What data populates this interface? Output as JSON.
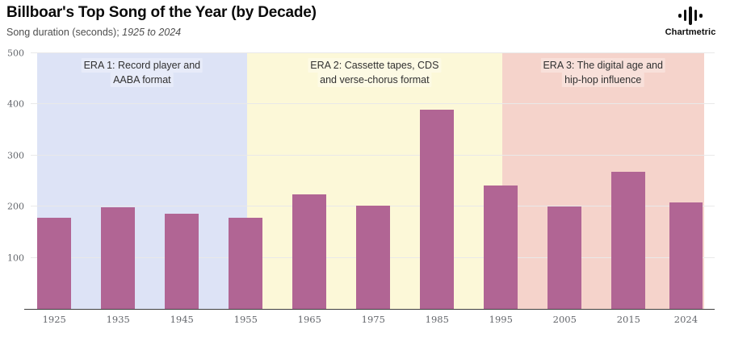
{
  "header": {
    "title": "Billboar's Top Song of the Year (by Decade)",
    "subtitle_prefix": "Song duration (seconds); ",
    "subtitle_italic": "1925 to 2024"
  },
  "brand": {
    "name": "Chartmetric",
    "icon": "waveform-icon",
    "icon_bar_heights": [
      5,
      14,
      23,
      14,
      5
    ]
  },
  "chart_data": {
    "type": "bar",
    "title": "Billboar's Top Song of the Year (by Decade)",
    "subtitle": "Song duration (seconds); 1925 to 2024",
    "xlabel": "",
    "ylabel": "Song duration (seconds)",
    "categories": [
      "1925",
      "1935",
      "1945",
      "1955",
      "1965",
      "1975",
      "1985",
      "1995",
      "2005",
      "2015",
      "2024"
    ],
    "x_years": [
      1925,
      1935,
      1945,
      1955,
      1965,
      1975,
      1985,
      1995,
      2005,
      2015,
      2024
    ],
    "values": [
      179,
      198,
      186,
      179,
      224,
      202,
      390,
      242,
      200,
      268,
      208
    ],
    "ylim": [
      0,
      500
    ],
    "yticks": [
      100,
      200,
      300,
      400,
      500
    ],
    "x_axis_range_years": [
      1921.3,
      2028.5
    ],
    "bar_width_years": 5.3,
    "bar_color": "#b16594",
    "grid": true,
    "gridline_color": "#e9e9e9",
    "axis_line_color": "#3f3f3f",
    "legend": "none",
    "eras": [
      {
        "line1": "ERA 1: Record player and",
        "line2": "AABA format",
        "color": "#dde3f6",
        "start_year": 1922.3,
        "end_year": 1955.2
      },
      {
        "line1": "ERA 2: Cassette tapes, CDS",
        "line2": "and verse-chorus format",
        "color": "#fcf8d8",
        "start_year": 1955.2,
        "end_year": 1995.2
      },
      {
        "line1": "ERA 3: The digital age and",
        "line2": "hip-hop influence",
        "color": "#f5d3cb",
        "start_year": 1995.2,
        "end_year": 2026.8
      }
    ]
  }
}
